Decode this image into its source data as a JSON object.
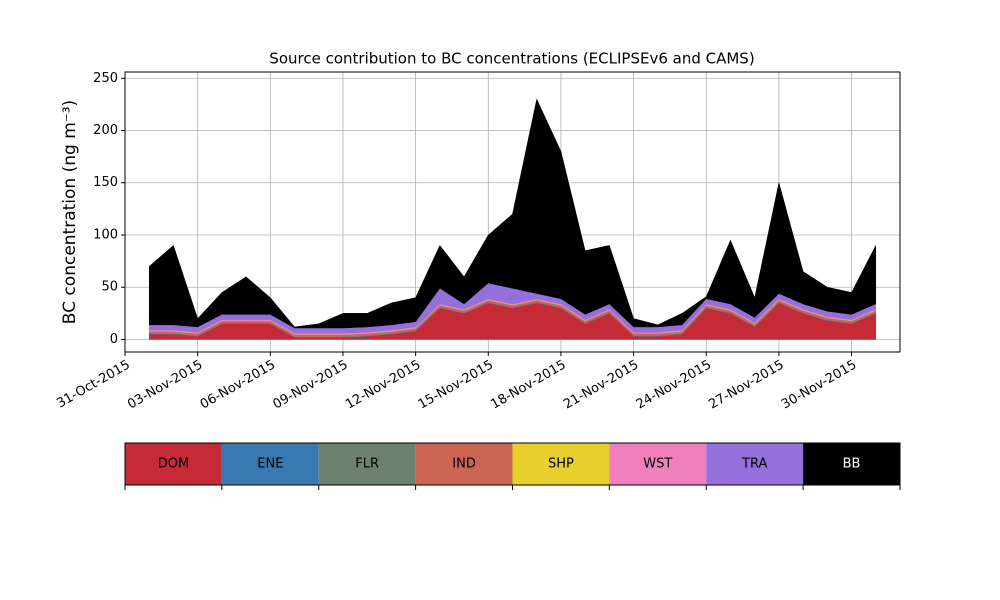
{
  "chart_data": {
    "type": "area",
    "title": "Source contribution to BC concentrations (ECLIPSEv6 and CAMS)",
    "ylabel": "BC concentration (ng m⁻³)",
    "x": [
      "2015-11-01",
      "2015-11-02",
      "2015-11-03",
      "2015-11-04",
      "2015-11-05",
      "2015-11-06",
      "2015-11-07",
      "2015-11-08",
      "2015-11-09",
      "2015-11-10",
      "2015-11-11",
      "2015-11-12",
      "2015-11-13",
      "2015-11-14",
      "2015-11-15",
      "2015-11-16",
      "2015-11-17",
      "2015-11-18",
      "2015-11-19",
      "2015-11-20",
      "2015-11-21",
      "2015-11-22",
      "2015-11-23",
      "2015-11-24",
      "2015-11-25",
      "2015-11-26",
      "2015-11-27",
      "2015-11-28",
      "2015-11-29",
      "2015-11-30",
      "2015-12-01"
    ],
    "series": [
      {
        "name": "DOM",
        "color": "#c62a37",
        "values": [
          5,
          5,
          3,
          15,
          15,
          15,
          2,
          2,
          2,
          3,
          5,
          8,
          30,
          25,
          35,
          30,
          35,
          30,
          15,
          25,
          3,
          3,
          5,
          30,
          25,
          12,
          35,
          25,
          18,
          15,
          25
        ]
      },
      {
        "name": "ENE",
        "color": "#3a78b0",
        "values": [
          0.5,
          0.5,
          0.5,
          0.5,
          0.5,
          0.5,
          0.5,
          0.5,
          0.5,
          0.5,
          0.5,
          0.5,
          0.5,
          0.5,
          0.5,
          0.5,
          0.5,
          0.5,
          0.5,
          0.5,
          0.5,
          0.5,
          0.5,
          0.5,
          0.5,
          0.5,
          0.5,
          0.5,
          0.5,
          0.5,
          0.5
        ]
      },
      {
        "name": "FLR",
        "color": "#6e8170",
        "values": [
          0.3,
          0.3,
          0.3,
          0.3,
          0.3,
          0.3,
          0.3,
          0.3,
          0.3,
          0.3,
          0.3,
          0.3,
          0.3,
          0.3,
          0.3,
          0.3,
          0.3,
          0.3,
          0.3,
          0.3,
          0.3,
          0.3,
          0.3,
          0.3,
          0.3,
          0.3,
          0.3,
          0.3,
          0.3,
          0.3,
          0.3
        ]
      },
      {
        "name": "IND",
        "color": "#cc6552",
        "values": [
          2,
          2,
          2,
          2,
          2,
          2,
          2,
          2,
          2,
          2,
          2,
          2,
          2,
          2,
          2,
          2,
          2,
          2,
          2,
          2,
          2,
          2,
          2,
          2,
          2,
          2,
          2,
          2,
          2,
          2,
          2
        ]
      },
      {
        "name": "SHP",
        "color": "#e7cf2e",
        "values": [
          0.2,
          0.2,
          0.2,
          0.2,
          0.2,
          0.2,
          0.2,
          0.2,
          0.2,
          0.2,
          0.2,
          0.2,
          0.2,
          0.2,
          0.2,
          0.2,
          0.2,
          0.2,
          0.2,
          0.2,
          0.2,
          0.2,
          0.2,
          0.2,
          0.2,
          0.2,
          0.2,
          0.2,
          0.2,
          0.2,
          0.2
        ]
      },
      {
        "name": "WST",
        "color": "#f07fbe",
        "values": [
          1,
          1,
          1,
          1,
          1,
          1,
          1,
          1,
          1,
          1,
          1,
          1,
          1,
          1,
          1,
          1,
          1,
          1,
          1,
          1,
          1,
          1,
          1,
          1,
          1,
          1,
          1,
          1,
          1,
          1,
          1
        ]
      },
      {
        "name": "TRA",
        "color": "#9370db",
        "values": [
          5,
          5,
          5,
          5,
          5,
          5,
          5,
          5,
          5,
          5,
          5,
          5,
          15,
          5,
          15,
          15,
          5,
          5,
          5,
          5,
          5,
          5,
          5,
          5,
          5,
          5,
          5,
          5,
          5,
          5,
          5
        ]
      },
      {
        "name": "BB",
        "color": "#000000",
        "values": [
          56,
          76,
          8,
          21,
          36,
          16,
          1,
          4,
          14,
          13,
          21,
          23,
          41,
          26,
          46,
          71,
          186,
          141,
          61,
          56,
          8,
          2,
          11,
          2,
          61,
          19,
          106,
          31,
          23,
          21,
          56
        ]
      }
    ],
    "xlim": [
      "2015-10-31",
      "2015-12-02"
    ],
    "xticks": [
      {
        "value": "2015-10-31",
        "label": "31-Oct-2015"
      },
      {
        "value": "2015-11-03",
        "label": "03-Nov-2015"
      },
      {
        "value": "2015-11-06",
        "label": "06-Nov-2015"
      },
      {
        "value": "2015-11-09",
        "label": "09-Nov-2015"
      },
      {
        "value": "2015-11-12",
        "label": "12-Nov-2015"
      },
      {
        "value": "2015-11-15",
        "label": "15-Nov-2015"
      },
      {
        "value": "2015-11-18",
        "label": "18-Nov-2015"
      },
      {
        "value": "2015-11-21",
        "label": "21-Nov-2015"
      },
      {
        "value": "2015-11-24",
        "label": "24-Nov-2015"
      },
      {
        "value": "2015-11-27",
        "label": "27-Nov-2015"
      },
      {
        "value": "2015-11-30",
        "label": "30-Nov-2015"
      }
    ],
    "ylim": [
      -12,
      256
    ],
    "yticks": [
      0,
      50,
      100,
      150,
      200,
      250
    ],
    "grid": true,
    "legend": "bottom"
  }
}
